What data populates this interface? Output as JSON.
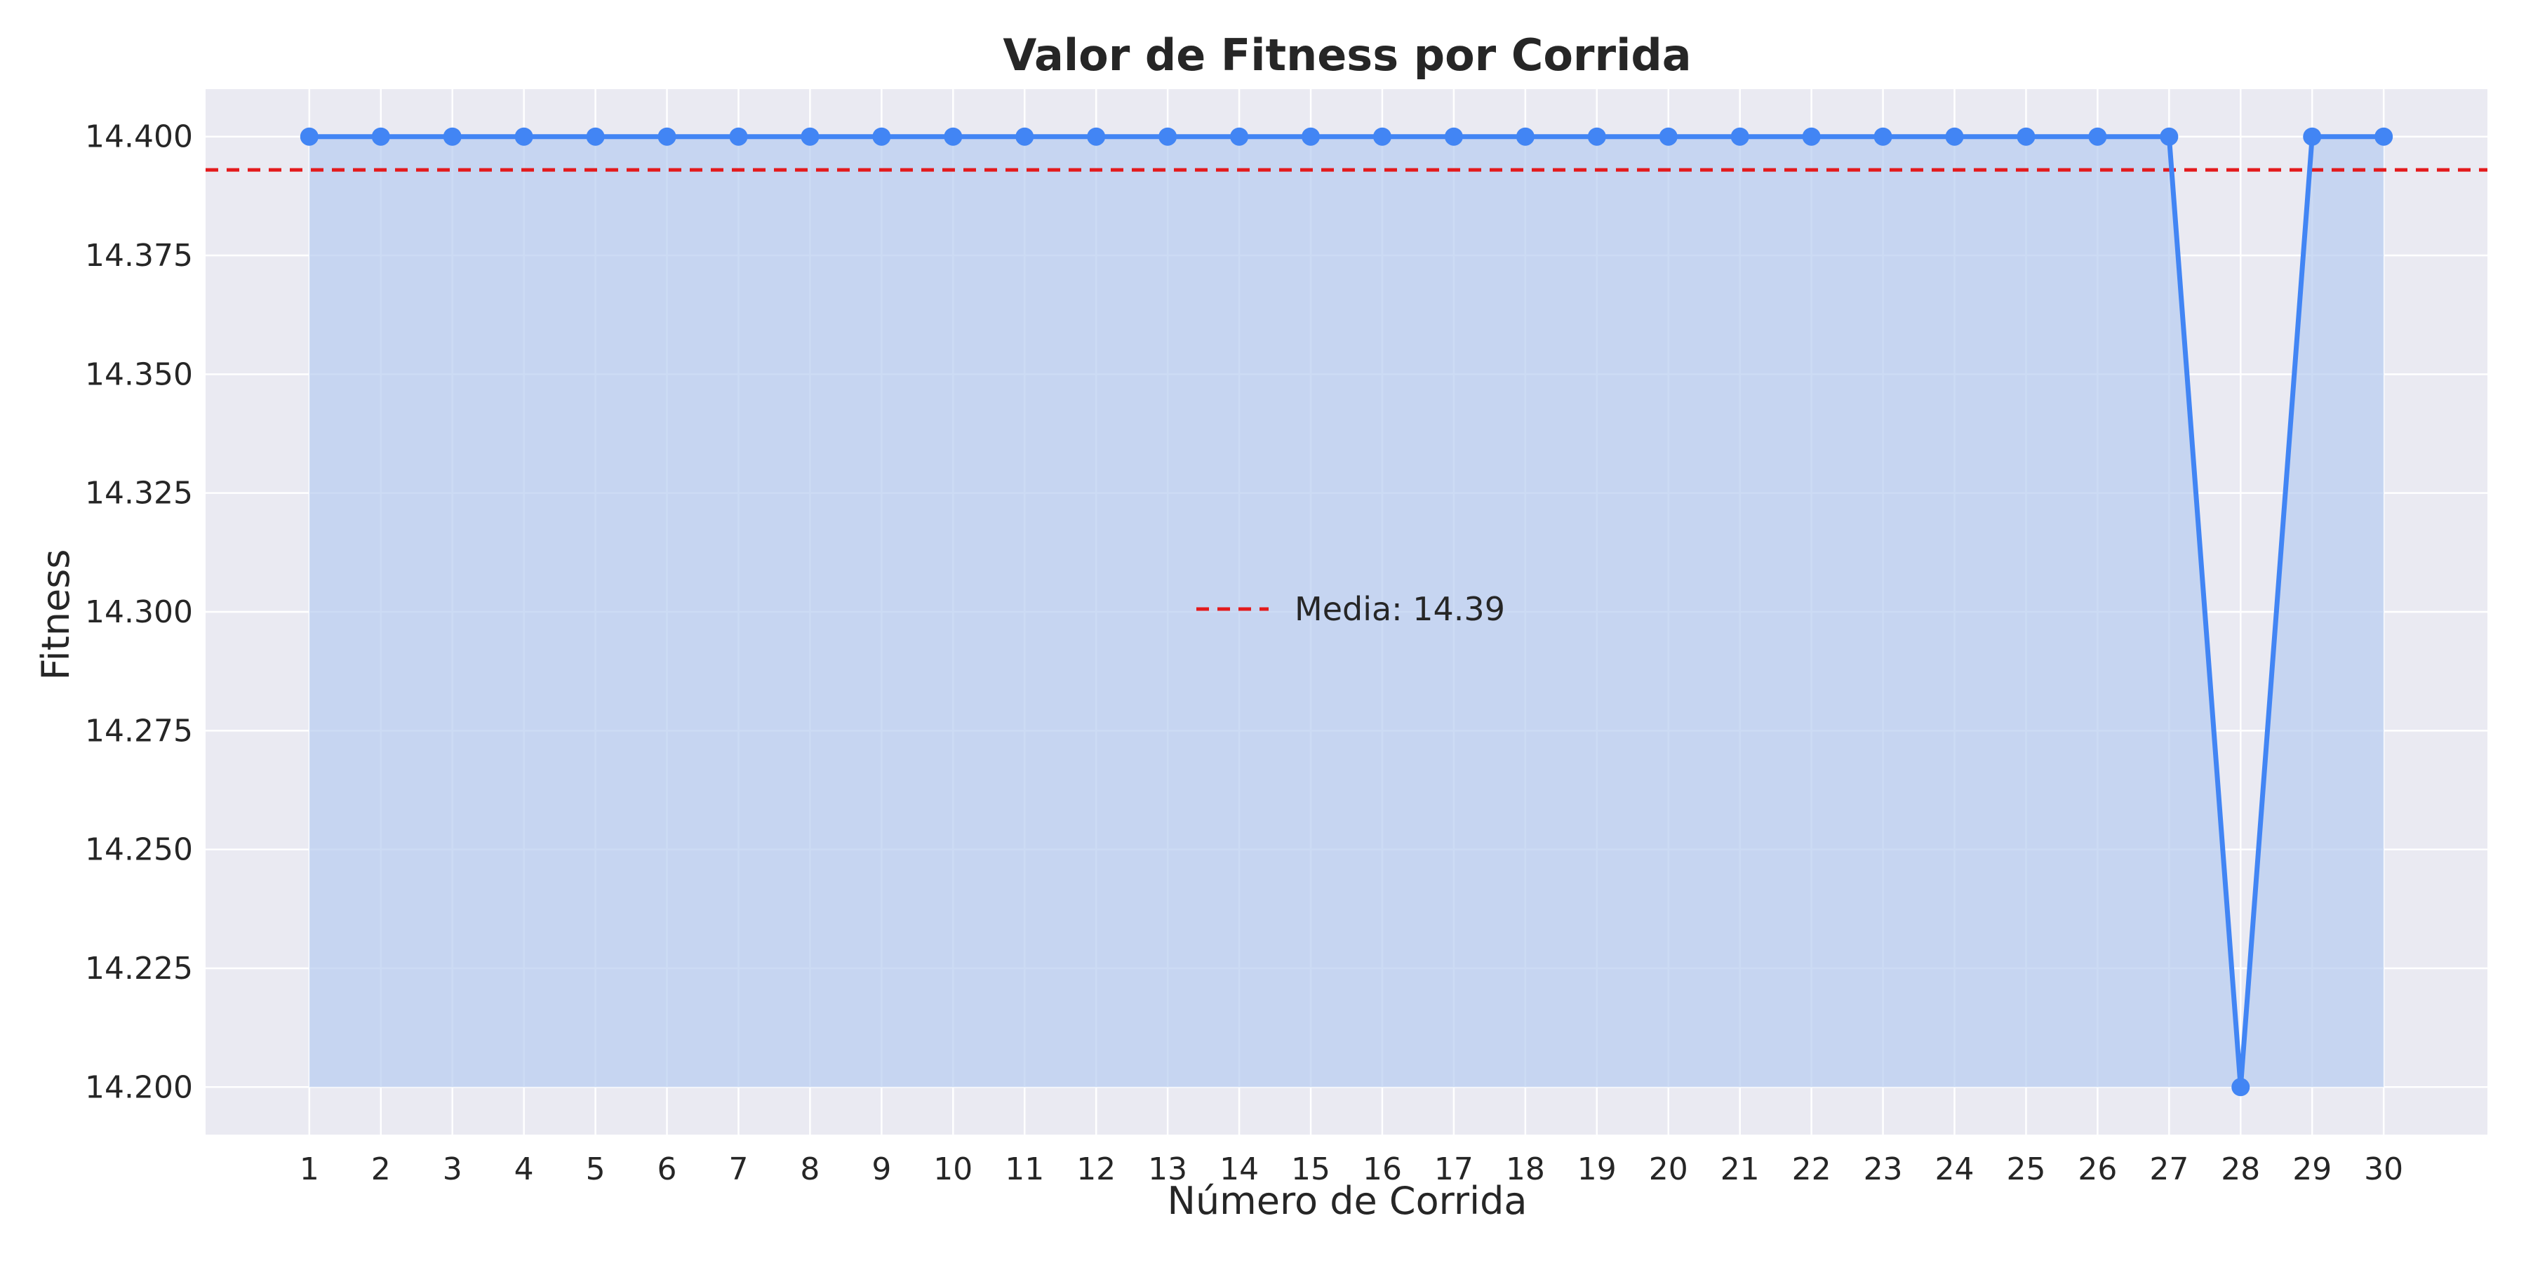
{
  "chart_data": {
    "type": "line",
    "title": "Valor de Fitness por Corrida",
    "xlabel": "Número de Corrida",
    "ylabel": "Fitness",
    "x": [
      1,
      2,
      3,
      4,
      5,
      6,
      7,
      8,
      9,
      10,
      11,
      12,
      13,
      14,
      15,
      16,
      17,
      18,
      19,
      20,
      21,
      22,
      23,
      24,
      25,
      26,
      27,
      28,
      29,
      30
    ],
    "series": [
      {
        "values": [
          14.4,
          14.4,
          14.4,
          14.4,
          14.4,
          14.4,
          14.4,
          14.4,
          14.4,
          14.4,
          14.4,
          14.4,
          14.4,
          14.4,
          14.4,
          14.4,
          14.4,
          14.4,
          14.4,
          14.4,
          14.4,
          14.4,
          14.4,
          14.4,
          14.4,
          14.4,
          14.4,
          14.2,
          14.4,
          14.4
        ],
        "color": "#4285f4",
        "fill_to": 14.2,
        "fill_color": "#b8cdf0"
      }
    ],
    "mean_line": {
      "value": 14.393,
      "label": "Media: 14.39",
      "color": "#e31a1c",
      "style": "dashed"
    },
    "ylim": [
      14.19,
      14.41
    ],
    "xlim": [
      -0.45,
      31.45
    ],
    "yticks": [
      14.2,
      14.225,
      14.25,
      14.275,
      14.3,
      14.325,
      14.35,
      14.375,
      14.4
    ],
    "ytick_labels": [
      "14.200",
      "14.225",
      "14.250",
      "14.275",
      "14.300",
      "14.325",
      "14.350",
      "14.375",
      "14.400"
    ],
    "legend_position": "center",
    "grid": true,
    "background_color": "#eaeaf2",
    "grid_color": "#ffffff"
  }
}
